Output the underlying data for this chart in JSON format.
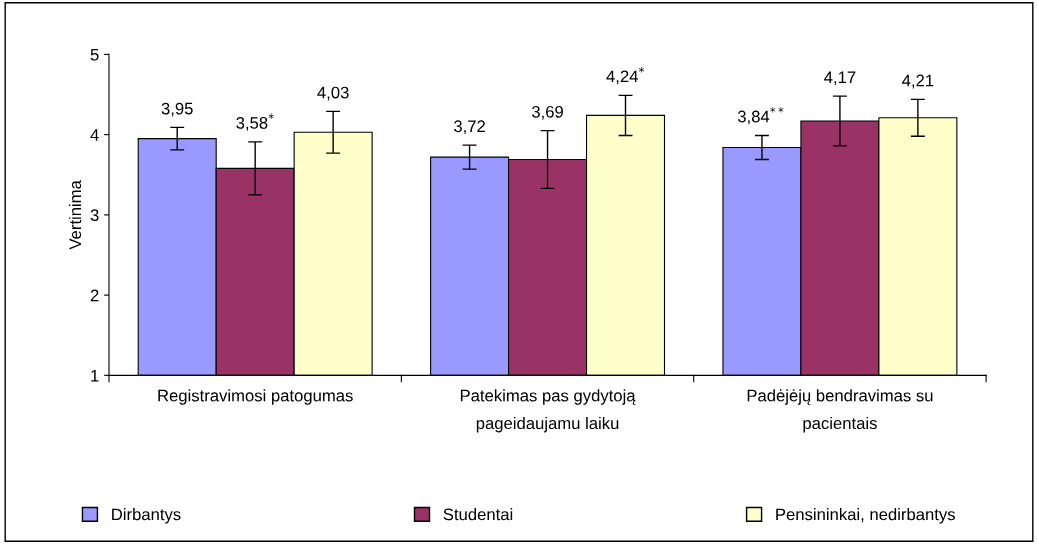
{
  "chart_data": {
    "type": "bar",
    "ylabel": "Vertinima",
    "categories": [
      "Registravimosi patogumas",
      "Patekimas pas gydytoją\npageidaujamu laiku",
      "Padėjėjų bendravimas su\npacientais"
    ],
    "series": [
      {
        "name": "Dirbantys",
        "color": "#9999ff",
        "values": [
          3.95,
          3.72,
          3.84
        ],
        "errors": [
          0.14,
          0.15,
          0.15
        ],
        "value_labels": [
          "3,95",
          "3,72",
          "3,84$^{**}$"
        ]
      },
      {
        "name": "Studentai",
        "color": "#993366",
        "values": [
          3.58,
          3.69,
          4.17
        ],
        "errors": [
          0.33,
          0.36,
          0.31
        ],
        "value_labels": [
          "3,58$^{*}$",
          "3,69",
          "4,17"
        ]
      },
      {
        "name": "Pensininkai, nedirbantys",
        "color": "#ffffcc",
        "values": [
          4.03,
          4.24,
          4.21
        ],
        "errors": [
          0.26,
          0.25,
          0.23
        ],
        "value_labels": [
          "4,03",
          "4,24$^{*}$",
          "4,21"
        ]
      }
    ],
    "ylim": [
      1,
      5
    ],
    "yticks": [
      1,
      2,
      3,
      4,
      5
    ],
    "grid": false,
    "legend": "bottom"
  }
}
